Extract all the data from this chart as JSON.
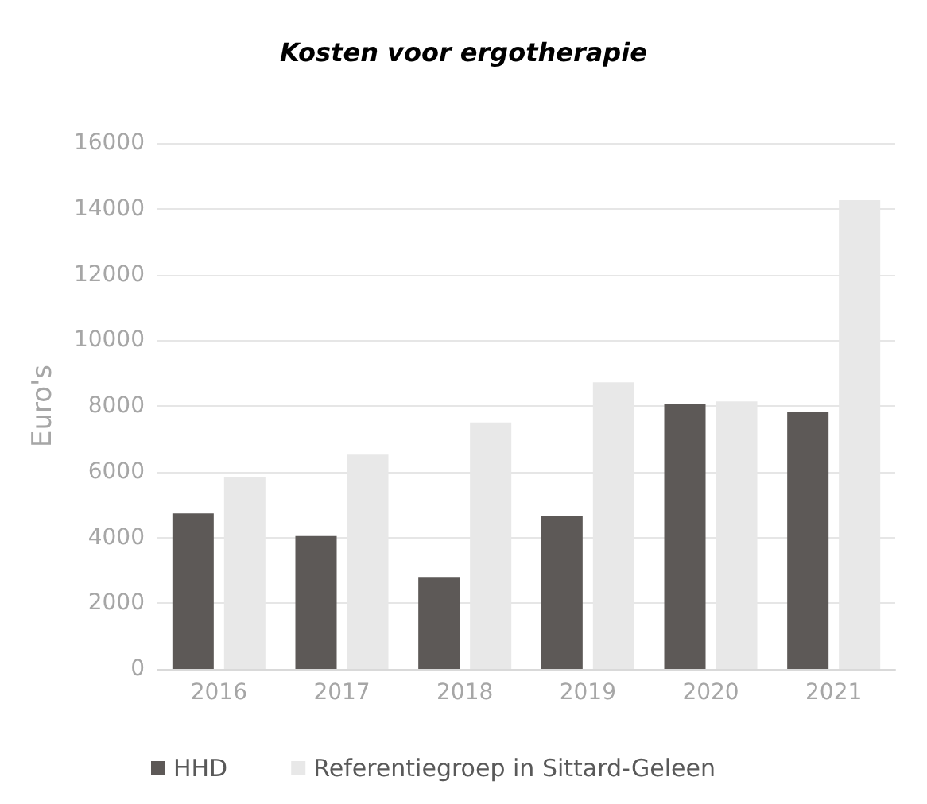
{
  "chart_data": {
    "type": "bar",
    "title": "Kosten voor ergotherapie",
    "ylabel": "Euro's",
    "categories": [
      "2016",
      "2017",
      "2018",
      "2019",
      "2020",
      "2021"
    ],
    "series": [
      {
        "name": "HHD",
        "color": "#5d5957",
        "values": [
          4730,
          4040,
          2800,
          4650,
          8070,
          7810
        ]
      },
      {
        "name": "Referentiegroep in Sittard-Geleen",
        "color": "#e8e8e8",
        "values": [
          5850,
          6520,
          7500,
          8720,
          8140,
          14260
        ]
      }
    ],
    "ylim": [
      0,
      16000
    ],
    "yticks": [
      0,
      2000,
      4000,
      6000,
      8000,
      10000,
      12000,
      14000,
      16000
    ],
    "grid": "y",
    "legend": "bottom"
  }
}
